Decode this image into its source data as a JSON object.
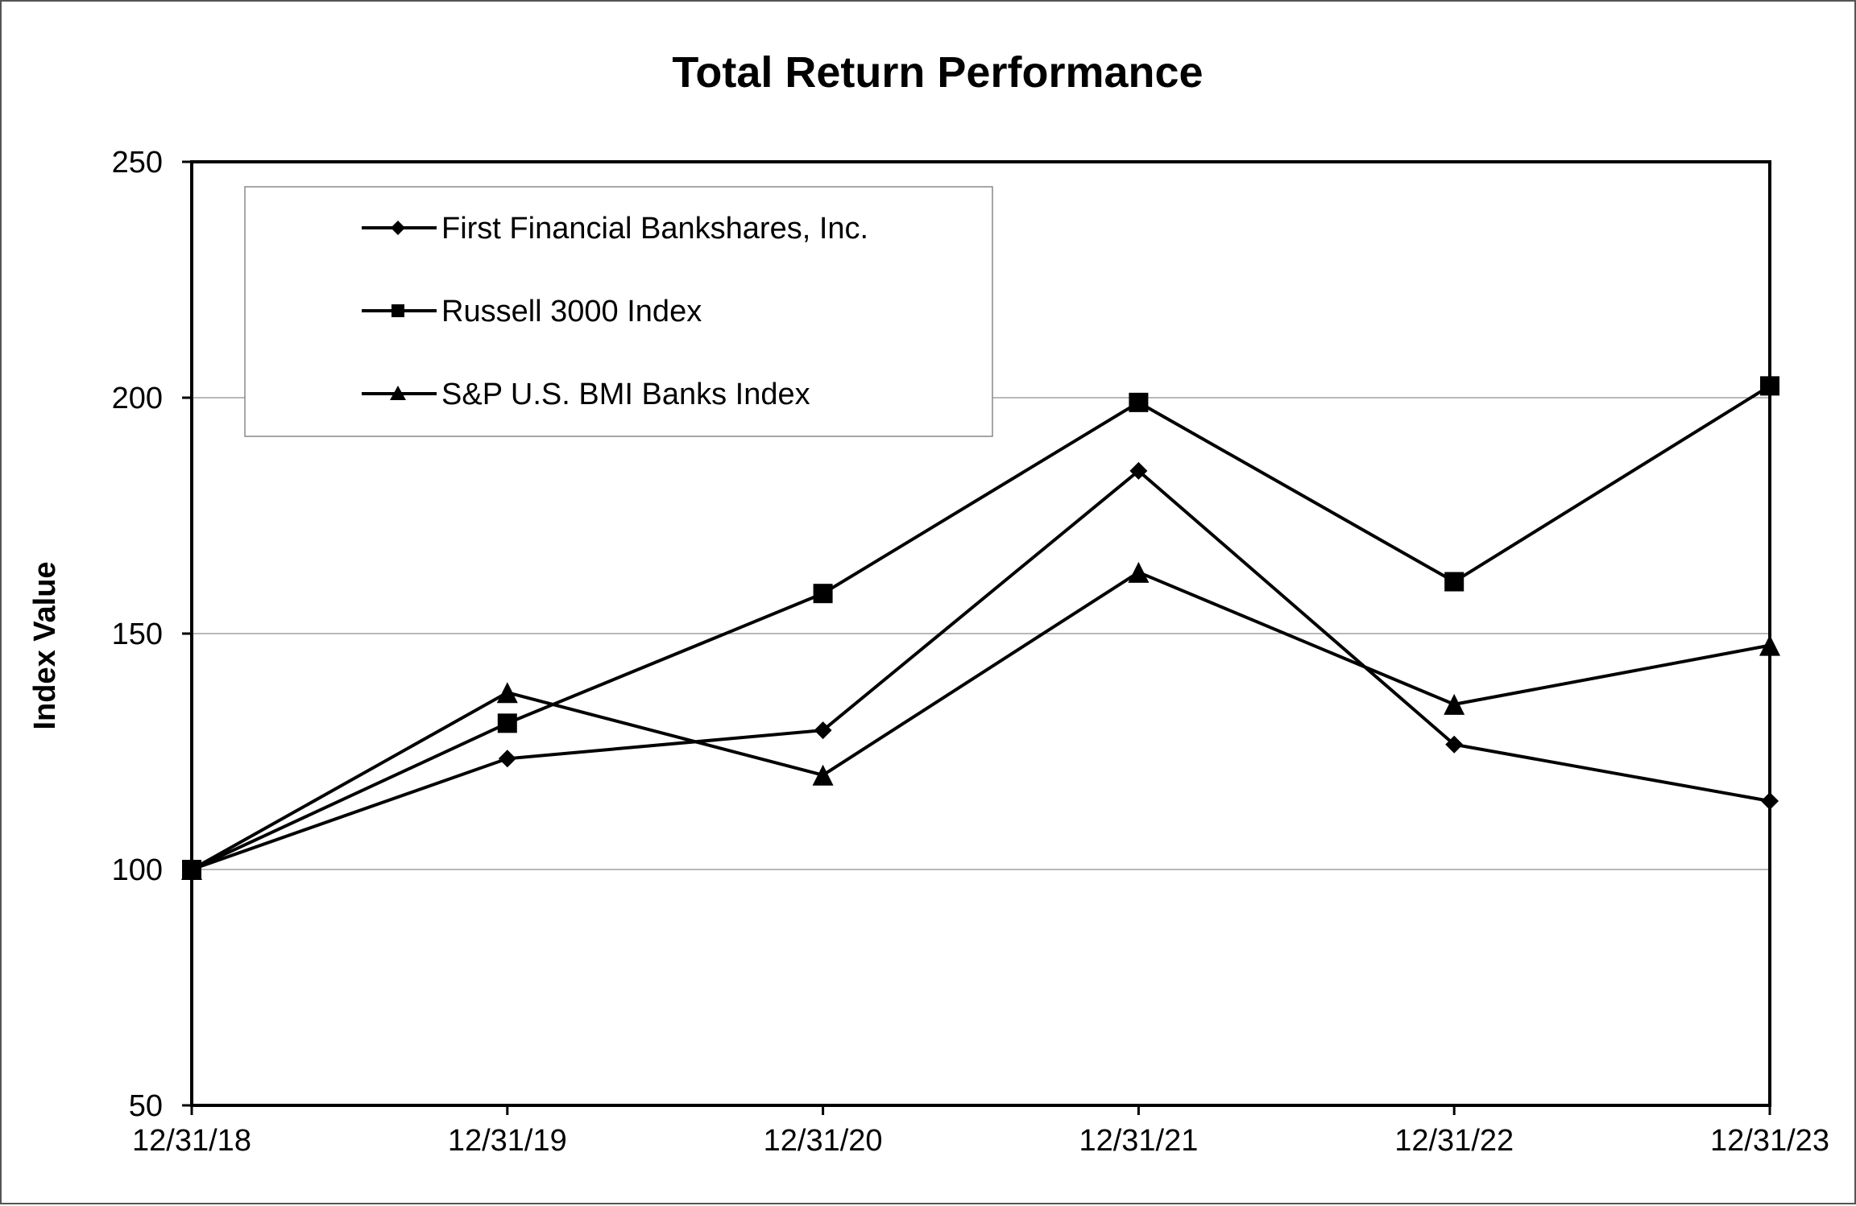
{
  "chart_data": {
    "type": "line",
    "title": "Total Return Performance",
    "xlabel": "",
    "ylabel": "Index Value",
    "categories": [
      "12/31/18",
      "12/31/19",
      "12/31/20",
      "12/31/21",
      "12/31/22",
      "12/31/23"
    ],
    "ylim": [
      50,
      250
    ],
    "yticks": [
      50,
      100,
      150,
      200,
      250
    ],
    "ytick_labels": [
      "50",
      "100",
      "150",
      "200",
      "250"
    ],
    "grid": true,
    "legend_position": "top-left",
    "series": [
      {
        "name": "First Financial Bankshares, Inc.",
        "marker": "diamond",
        "values": [
          100,
          123.5,
          129.5,
          184.5,
          126.5,
          114.5
        ]
      },
      {
        "name": "Russell 3000 Index",
        "marker": "square",
        "values": [
          100,
          131,
          158.5,
          199,
          161,
          202.5
        ]
      },
      {
        "name": "S&P U.S. BMI Banks Index",
        "marker": "triangle",
        "values": [
          100,
          137.5,
          120,
          163,
          135,
          147.5
        ]
      }
    ],
    "colors": {
      "line": "#000000",
      "grid": "#a0a0a0",
      "frame": "#555555",
      "legend_border": "#888888"
    }
  }
}
